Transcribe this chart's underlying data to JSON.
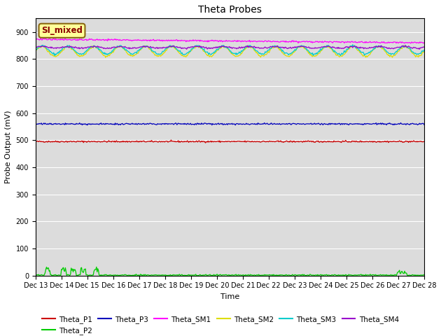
{
  "title": "Theta Probes",
  "ylabel": "Probe Output (mV)",
  "xlabel": "Time",
  "annotation_text": "SI_mixed",
  "annotation_bg": "#ffff99",
  "annotation_border": "#8b6914",
  "annotation_text_color": "#8b0000",
  "x_start": 13,
  "x_end": 28,
  "num_points": 600,
  "ylim": [
    0,
    950
  ],
  "yticks": [
    0,
    100,
    200,
    300,
    400,
    500,
    600,
    700,
    800,
    900
  ],
  "bg_color": "#dcdcdc",
  "series": {
    "Theta_P1": {
      "color": "#cc0000",
      "base": 495,
      "noise": 1.5,
      "wave_amp": 0,
      "wave_freq": 0
    },
    "Theta_P2": {
      "color": "#00cc00",
      "base": 2,
      "noise": 2,
      "wave_amp": 0,
      "wave_freq": 0
    },
    "Theta_P3": {
      "color": "#0000bb",
      "base": 560,
      "noise": 1.5,
      "wave_amp": 0,
      "wave_freq": 0
    },
    "Theta_SM1": {
      "color": "#ff00ff",
      "base": 870,
      "noise": 1.5,
      "wave_amp": 0,
      "wave_freq": 0
    },
    "Theta_SM2": {
      "color": "#dddd00",
      "base": 828,
      "noise": 2,
      "wave_amp": 18,
      "wave_freq": 1.0
    },
    "Theta_SM3": {
      "color": "#00cccc",
      "base": 833,
      "noise": 2,
      "wave_amp": 15,
      "wave_freq": 1.0
    },
    "Theta_SM4": {
      "color": "#9900cc",
      "base": 843,
      "noise": 1.5,
      "wave_amp": 3,
      "wave_freq": 1.0
    }
  },
  "legend_order": [
    "Theta_P1",
    "Theta_P2",
    "Theta_P3",
    "Theta_SM1",
    "Theta_SM2",
    "Theta_SM3",
    "Theta_SM4"
  ],
  "xtick_labels": [
    "Dec 13",
    "Dec 14",
    "Dec 15",
    "Dec 16",
    "Dec 17",
    "Dec 18",
    "Dec 19",
    "Dec 20",
    "Dec 21",
    "Dec 22",
    "Dec 23",
    "Dec 24",
    "Dec 25",
    "Dec 26",
    "Dec 27",
    "Dec 28"
  ],
  "xtick_positions": [
    13,
    14,
    15,
    16,
    17,
    18,
    19,
    20,
    21,
    22,
    23,
    24,
    25,
    26,
    27,
    28
  ]
}
